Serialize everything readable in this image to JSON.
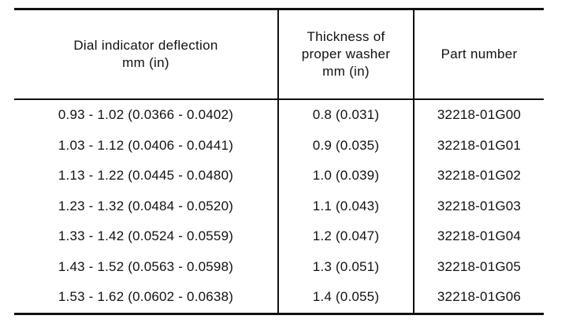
{
  "table": {
    "headers": {
      "col1": [
        "Dial indicator deflection",
        "mm (in)"
      ],
      "col2": [
        "Thickness of",
        "proper washer",
        "mm (in)"
      ],
      "col3": [
        "Part number"
      ]
    },
    "rows": [
      {
        "deflection": "0.93 - 1.02 (0.0366 - 0.0402)",
        "thickness": "0.8 (0.031)",
        "part": "32218-01G00"
      },
      {
        "deflection": "1.03 - 1.12 (0.0406 - 0.0441)",
        "thickness": "0.9 (0.035)",
        "part": "32218-01G01"
      },
      {
        "deflection": "1.13 - 1.22 (0.0445 - 0.0480)",
        "thickness": "1.0 (0.039)",
        "part": "32218-01G02"
      },
      {
        "deflection": "1.23 - 1.32 (0.0484 - 0.0520)",
        "thickness": "1.1 (0.043)",
        "part": "32218-01G03"
      },
      {
        "deflection": "1.33 - 1.42 (0.0524 - 0.0559)",
        "thickness": "1.2 (0.047)",
        "part": "32218-01G04"
      },
      {
        "deflection": "1.43 - 1.52 (0.0563 - 0.0598)",
        "thickness": "1.3 (0.051)",
        "part": "32218-01G05"
      },
      {
        "deflection": "1.53 - 1.62 (0.0602 - 0.0638)",
        "thickness": "1.4 (0.055)",
        "part": "32218-01G06"
      }
    ]
  }
}
